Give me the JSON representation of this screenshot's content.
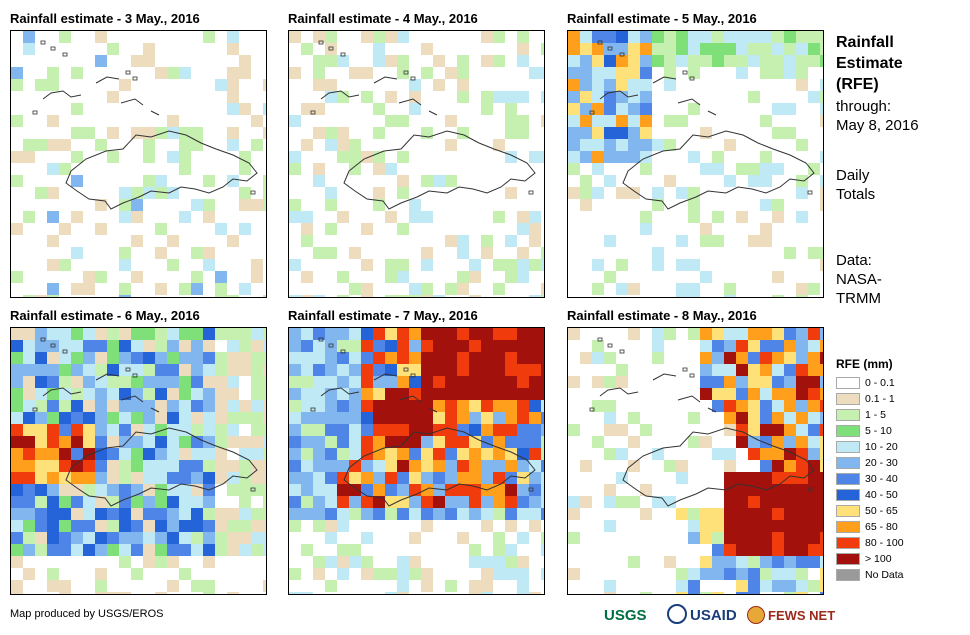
{
  "panels": [
    {
      "title": "Rainfall estimate - 3 May., 2016",
      "day": 3
    },
    {
      "title": "Rainfall estimate - 4 May., 2016",
      "day": 4
    },
    {
      "title": "Rainfall estimate - 5 May., 2016",
      "day": 5
    },
    {
      "title": "Rainfall estimate - 6 May., 2016",
      "day": 6
    },
    {
      "title": "Rainfall estimate - 7 May., 2016",
      "day": 7
    },
    {
      "title": "Rainfall estimate - 8 May., 2016",
      "day": 8
    }
  ],
  "side": {
    "title_line1": "Rainfall",
    "title_line2": "Estimate",
    "title_line3": "(RFE)",
    "through_label": "through:",
    "through_date": "May 8, 2016",
    "totals_line1": "Daily",
    "totals_line2": "Totals",
    "data_line1": "Data:",
    "data_line2": "NASA-",
    "data_line3": "TRMM"
  },
  "legend": {
    "title": "RFE (mm)",
    "items": [
      {
        "label": "0 - 0.1",
        "color": "#ffffff"
      },
      {
        "label": "0.1 - 1",
        "color": "#eddcbd"
      },
      {
        "label": "1 - 5",
        "color": "#c5f0b0"
      },
      {
        "label": "5 - 10",
        "color": "#7fe07a"
      },
      {
        "label": "10 - 20",
        "color": "#bfe9f5"
      },
      {
        "label": "20 - 30",
        "color": "#82b6ef"
      },
      {
        "label": "30 - 40",
        "color": "#4f85e6"
      },
      {
        "label": "40 - 50",
        "color": "#2563d9"
      },
      {
        "label": "50 - 65",
        "color": "#ffe17a"
      },
      {
        "label": "65 - 80",
        "color": "#ff9f1c"
      },
      {
        "label": "80 - 100",
        "color": "#f03c0c"
      },
      {
        "label": "> 100",
        "color": "#a3110c"
      },
      {
        "label": "No Data",
        "color": "#9a9a9a"
      }
    ]
  },
  "credit": "Map produced by USGS/EROS",
  "logos": {
    "usgs": "USGS",
    "usaid": "USAID",
    "fews": "FEWS NET"
  }
}
